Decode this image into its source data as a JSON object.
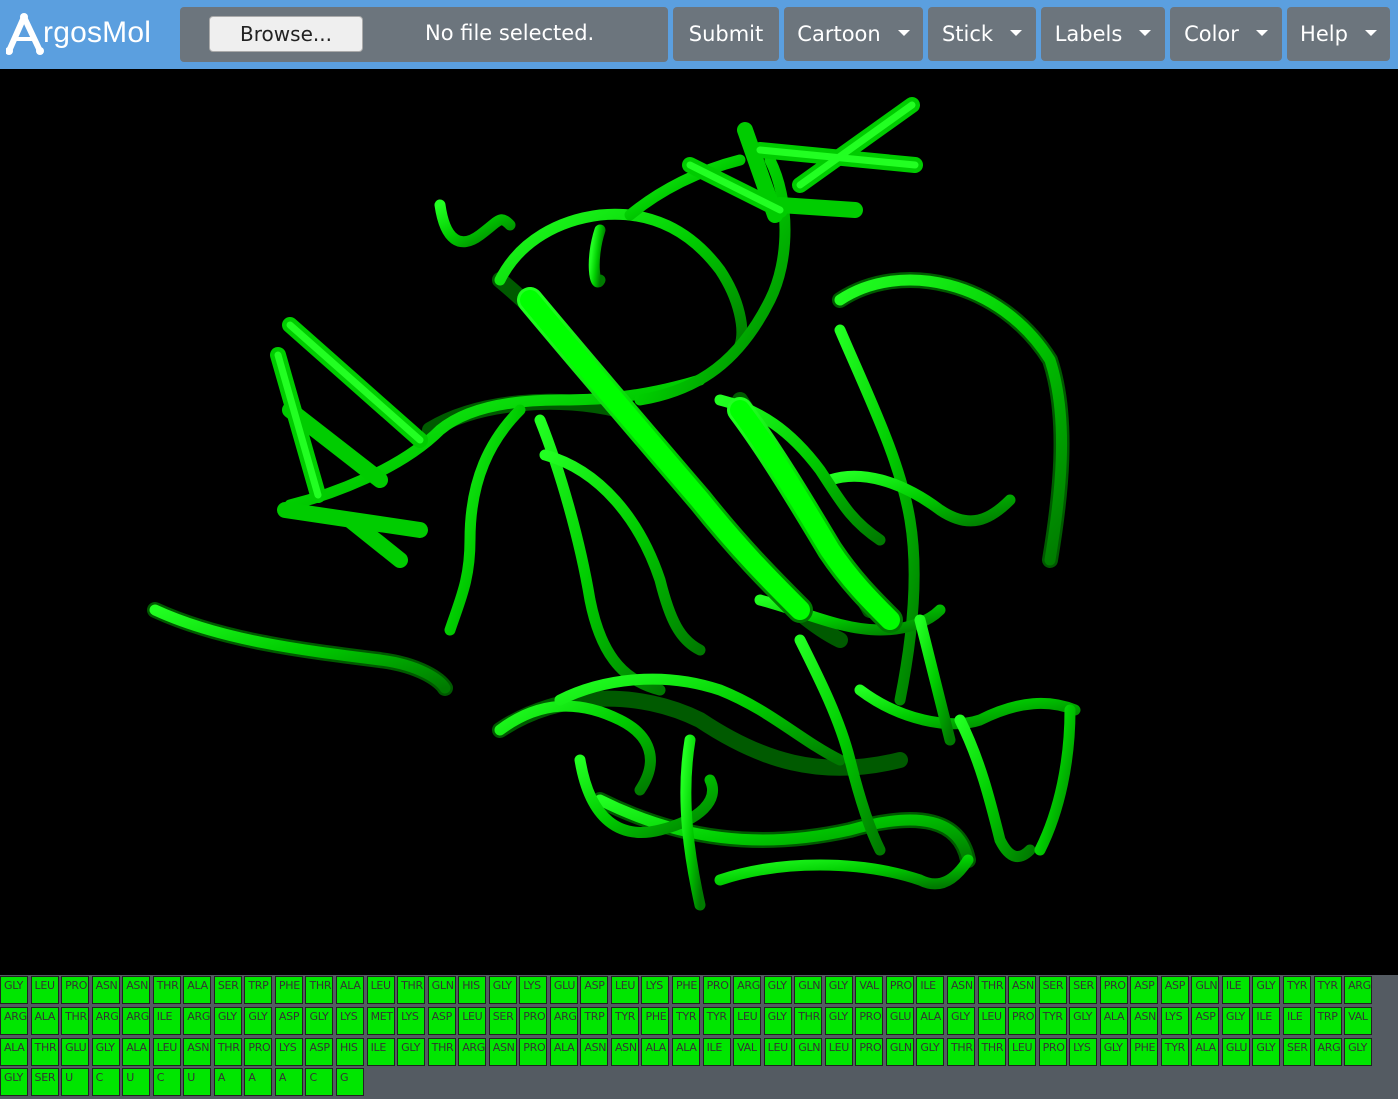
{
  "app": {
    "logo_text": "rgosMol",
    "logo_icon": "argosmol-a-icon"
  },
  "toolbar": {
    "browse_label": "Browse...",
    "file_status": "No file selected.",
    "submit_label": "Submit",
    "menus": [
      {
        "label": "Cartoon"
      },
      {
        "label": "Stick"
      },
      {
        "label": "Labels"
      },
      {
        "label": "Color"
      },
      {
        "label": "Help"
      }
    ]
  },
  "viewer": {
    "background_color": "#000000",
    "structure_color": "#00e600"
  },
  "sequence": {
    "cell_color": "#00e600",
    "rows": [
      [
        "GLY",
        "LEU",
        "PRO",
        "ASN",
        "ASN",
        "THR",
        "ALA",
        "SER",
        "TRP",
        "PHE",
        "THR",
        "ALA",
        "LEU",
        "THR",
        "GLN",
        "HIS",
        "GLY",
        "LYS",
        "GLU",
        "ASP",
        "LEU",
        "LYS",
        "PHE",
        "PRO",
        "ARG",
        "GLY",
        "GLN",
        "GLY",
        "VAL",
        "PRO",
        "ILE",
        "ASN",
        "THR",
        "ASN",
        "SER",
        "SER",
        "PRO",
        "ASP",
        "ASP",
        "GLN",
        "ILE",
        "GLY",
        "TYR",
        "TYR",
        "ARG"
      ],
      [
        "ARG",
        "ALA",
        "THR",
        "ARG",
        "ARG",
        "ILE",
        "ARG",
        "GLY",
        "GLY",
        "ASP",
        "GLY",
        "LYS",
        "MET",
        "LYS",
        "ASP",
        "LEU",
        "SER",
        "PRO",
        "ARG",
        "TRP",
        "TYR",
        "PHE",
        "TYR",
        "TYR",
        "LEU",
        "GLY",
        "THR",
        "GLY",
        "PRO",
        "GLU",
        "ALA",
        "GLY",
        "LEU",
        "PRO",
        "TYR",
        "GLY",
        "ALA",
        "ASN",
        "LYS",
        "ASP",
        "GLY",
        "ILE",
        "ILE",
        "TRP",
        "VAL"
      ],
      [
        "ALA",
        "THR",
        "GLU",
        "GLY",
        "ALA",
        "LEU",
        "ASN",
        "THR",
        "PRO",
        "LYS",
        "ASP",
        "HIS",
        "ILE",
        "GLY",
        "THR",
        "ARG",
        "ASN",
        "PRO",
        "ALA",
        "ASN",
        "ASN",
        "ALA",
        "ALA",
        "ILE",
        "VAL",
        "LEU",
        "GLN",
        "LEU",
        "PRO",
        "GLN",
        "GLY",
        "THR",
        "THR",
        "LEU",
        "PRO",
        "LYS",
        "GLY",
        "PHE",
        "TYR",
        "ALA",
        "GLU",
        "GLY",
        "SER",
        "ARG",
        "GLY"
      ],
      [
        "GLY",
        "SER",
        "U",
        "C",
        "U",
        "C",
        "U",
        "A",
        "A",
        "A",
        "C",
        "G"
      ]
    ]
  }
}
